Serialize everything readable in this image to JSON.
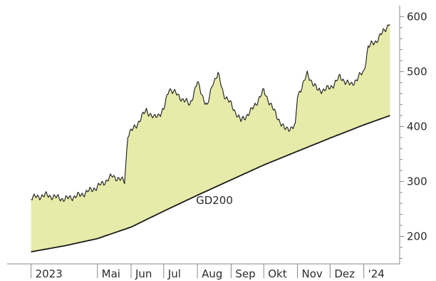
{
  "chart_data": {
    "type": "area",
    "price_series": {
      "x": [
        "2023-03-01",
        "2023-03-15",
        "2023-04-01",
        "2023-04-15",
        "2023-05-01",
        "2023-05-15",
        "2023-05-26",
        "2023-05-29",
        "2023-06-05",
        "2023-06-15",
        "2023-06-22",
        "2023-07-01",
        "2023-07-06",
        "2023-07-15",
        "2023-07-25",
        "2023-08-01",
        "2023-08-10",
        "2023-08-15",
        "2023-08-20",
        "2023-08-25",
        "2023-09-01",
        "2023-09-10",
        "2023-09-20",
        "2023-10-01",
        "2023-10-10",
        "2023-10-20",
        "2023-10-30",
        "2023-11-01",
        "2023-11-10",
        "2023-11-20",
        "2023-12-01",
        "2023-12-10",
        "2023-12-20",
        "2024-01-01",
        "2024-01-05",
        "2024-01-12",
        "2024-01-20",
        "2024-01-25"
      ],
      "y": [
        270,
        275,
        268,
        275,
        290,
        310,
        300,
        385,
        400,
        430,
        415,
        430,
        470,
        455,
        440,
        480,
        435,
        480,
        495,
        460,
        440,
        410,
        430,
        465,
        430,
        395,
        400,
        455,
        495,
        465,
        470,
        490,
        475,
        500,
        545,
        555,
        575,
        590
      ]
    },
    "gd200": {
      "label": "GD200",
      "x": [
        "2023-03-01",
        "2023-04-01",
        "2023-05-01",
        "2023-06-01",
        "2023-07-01",
        "2023-08-01",
        "2023-09-01",
        "2023-10-01",
        "2023-11-01",
        "2023-12-01",
        "2024-01-01",
        "2024-01-25"
      ],
      "y": [
        172,
        183,
        196,
        217,
        246,
        275,
        303,
        330,
        355,
        379,
        403,
        420
      ]
    },
    "x_ticks": [
      {
        "date": "2023-03-01",
        "label": "2023"
      },
      {
        "date": "2023-05-01",
        "label": "Mai"
      },
      {
        "date": "2023-06-01",
        "label": "Jun"
      },
      {
        "date": "2023-07-01",
        "label": "Jul"
      },
      {
        "date": "2023-08-01",
        "label": "Aug"
      },
      {
        "date": "2023-09-01",
        "label": "Sep"
      },
      {
        "date": "2023-10-01",
        "label": "Okt"
      },
      {
        "date": "2023-11-01",
        "label": "Nov"
      },
      {
        "date": "2023-12-01",
        "label": "Dez"
      },
      {
        "date": "2024-01-01",
        "label": "'24"
      }
    ],
    "y_ticks": [
      200,
      300,
      400,
      500,
      600
    ],
    "xlim": [
      "2023-02-07",
      "2024-02-03"
    ],
    "ylim": [
      150,
      620
    ],
    "grid": false,
    "colors": {
      "fill": "#e6ebaa",
      "price_line": "#1a1a1a",
      "gd200_line": "#1a1a1a",
      "axis": "#8a8a8a"
    }
  }
}
